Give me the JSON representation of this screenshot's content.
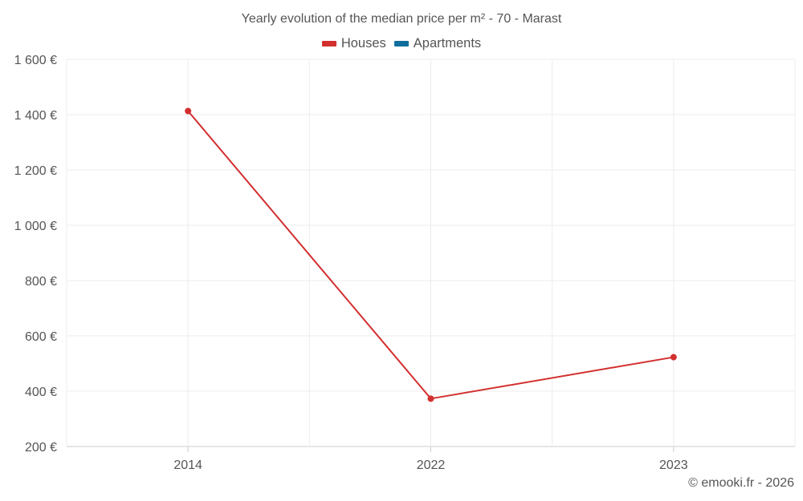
{
  "chart_data": {
    "type": "line",
    "title": "Yearly evolution of the median price per m² - 70 - Marast",
    "categories": [
      "2014",
      "2022",
      "2023"
    ],
    "ylim": [
      200,
      1600
    ],
    "yticks": [
      {
        "value": 1600,
        "label": "1 600 €"
      },
      {
        "value": 1400,
        "label": "1 400 €"
      },
      {
        "value": 1200,
        "label": "1 200 €"
      },
      {
        "value": 1000,
        "label": "1 000 €"
      },
      {
        "value": 800,
        "label": "800 €"
      },
      {
        "value": 600,
        "label": "600 €"
      },
      {
        "value": 400,
        "label": "400 €"
      },
      {
        "value": 200,
        "label": "200 €"
      }
    ],
    "grid": true,
    "legend_position": "top-center",
    "series": [
      {
        "name": "Houses",
        "color": "#d32f2f",
        "values": [
          1413,
          373,
          523
        ]
      },
      {
        "name": "Apartments",
        "color": "#0f6e9e",
        "values": [
          null,
          null,
          null
        ]
      }
    ]
  },
  "credit": "© emooki.fr - 2026"
}
